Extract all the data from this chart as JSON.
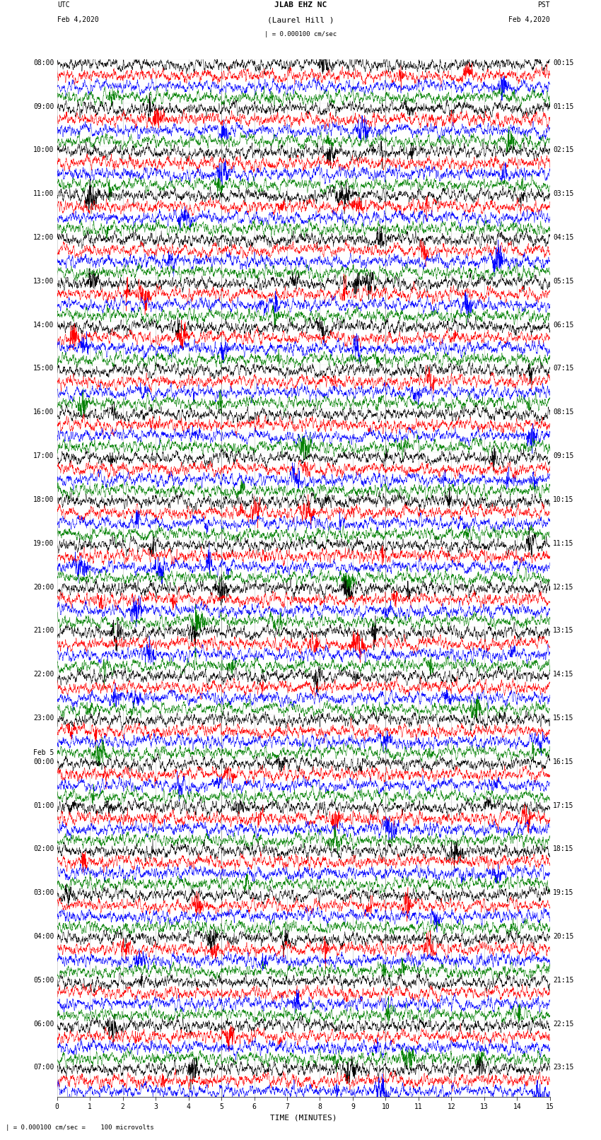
{
  "title_line1": "JLAB EHZ NC",
  "title_line2": "(Laurel Hill )",
  "scale_text": "| = 0.000100 cm/sec",
  "utc_label": "UTC",
  "pst_label": "PST",
  "date_left": "Feb 4,2020",
  "date_right": "Feb 4,2020",
  "xlabel": "TIME (MINUTES)",
  "footer_text": "| = 0.000100 cm/sec =    100 microvolts",
  "bg_color": "#ffffff",
  "colors": [
    "black",
    "red",
    "blue",
    "green"
  ],
  "left_labels": [
    [
      0,
      "08:00"
    ],
    [
      4,
      "09:00"
    ],
    [
      8,
      "10:00"
    ],
    [
      12,
      "11:00"
    ],
    [
      16,
      "12:00"
    ],
    [
      20,
      "13:00"
    ],
    [
      24,
      "14:00"
    ],
    [
      28,
      "15:00"
    ],
    [
      32,
      "16:00"
    ],
    [
      36,
      "17:00"
    ],
    [
      40,
      "18:00"
    ],
    [
      44,
      "19:00"
    ],
    [
      48,
      "20:00"
    ],
    [
      52,
      "21:00"
    ],
    [
      56,
      "22:00"
    ],
    [
      60,
      "23:00"
    ],
    [
      64,
      "Feb 5"
    ],
    [
      64,
      "00:00"
    ],
    [
      68,
      "01:00"
    ],
    [
      72,
      "02:00"
    ],
    [
      76,
      "03:00"
    ],
    [
      80,
      "04:00"
    ],
    [
      84,
      "05:00"
    ],
    [
      88,
      "06:00"
    ],
    [
      92,
      "07:00"
    ]
  ],
  "right_labels": [
    [
      0,
      "00:15"
    ],
    [
      4,
      "01:15"
    ],
    [
      8,
      "02:15"
    ],
    [
      12,
      "03:15"
    ],
    [
      16,
      "04:15"
    ],
    [
      20,
      "05:15"
    ],
    [
      24,
      "06:15"
    ],
    [
      28,
      "07:15"
    ],
    [
      32,
      "08:15"
    ],
    [
      36,
      "09:15"
    ],
    [
      40,
      "10:15"
    ],
    [
      44,
      "11:15"
    ],
    [
      48,
      "12:15"
    ],
    [
      52,
      "13:15"
    ],
    [
      56,
      "14:15"
    ],
    [
      60,
      "15:15"
    ],
    [
      64,
      "16:15"
    ],
    [
      68,
      "17:15"
    ],
    [
      72,
      "18:15"
    ],
    [
      76,
      "19:15"
    ],
    [
      80,
      "20:15"
    ],
    [
      84,
      "21:15"
    ],
    [
      88,
      "22:15"
    ],
    [
      92,
      "23:15"
    ]
  ],
  "num_rows": 95,
  "xmin": 0,
  "xmax": 15,
  "xticks": [
    0,
    1,
    2,
    3,
    4,
    5,
    6,
    7,
    8,
    9,
    10,
    11,
    12,
    13,
    14,
    15
  ],
  "figwidth": 8.5,
  "figheight": 16.13,
  "dpi": 100,
  "title_fontsize": 8,
  "label_fontsize": 7,
  "tick_fontsize": 7,
  "axis_label_fontsize": 8,
  "trace_amplitude": 0.28,
  "trace_linewidth": 0.35,
  "vline_color": "#999999",
  "vgrid_color": "#bbbbbb"
}
